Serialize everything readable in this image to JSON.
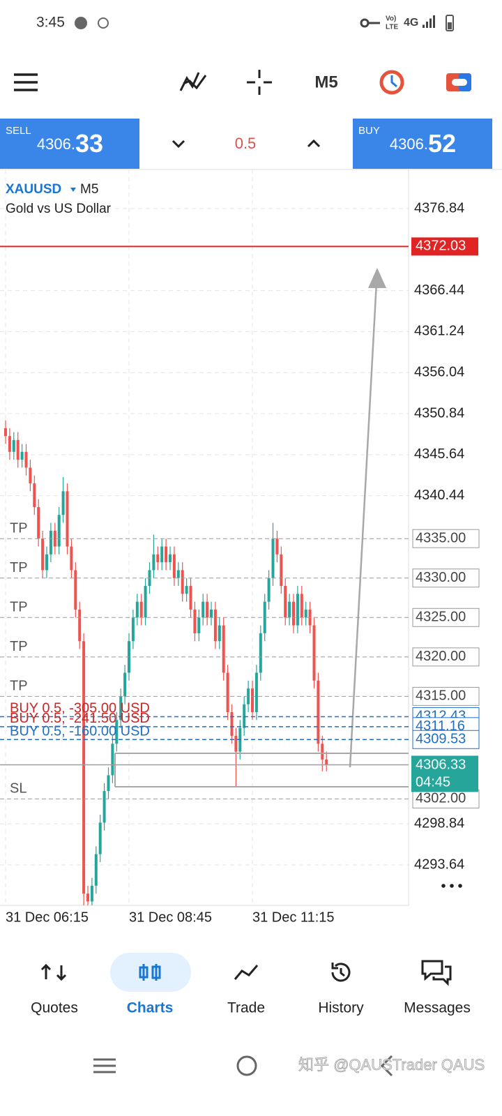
{
  "status_bar": {
    "time": "3:45",
    "volte_top": "Vo)",
    "volte_bottom": "LTE",
    "network": "4G"
  },
  "toolbar": {
    "timeframe": "M5"
  },
  "trade_panel": {
    "sell_label": "SELL",
    "sell_price": {
      "main": "4306.",
      "big": "33"
    },
    "volume": "0.5",
    "buy_label": "BUY",
    "buy_price": {
      "main": "4306.",
      "big": "52"
    }
  },
  "chart_data": {
    "type": "candlestick",
    "symbol": "XAUUSD",
    "timeframe": "M5",
    "title": "Gold vs US Dollar",
    "up_color": "#26a69a",
    "down_color": "#ef5350",
    "grid": true,
    "ylim": [
      4288.51,
      4381.79
    ],
    "yticks": [
      4376.84,
      4366.44,
      4361.24,
      4356.04,
      4350.84,
      4345.64,
      4340.44,
      4298.84,
      4293.64
    ],
    "xticks": [
      {
        "value": 0,
        "label": "31 Dec 06:15"
      },
      {
        "value": 30,
        "label": "31 Dec 08:45"
      },
      {
        "value": 60,
        "label": "31 Dec 11:15"
      }
    ],
    "open": [
      4349,
      4348,
      4346,
      4347.5,
      4345,
      4346,
      4344,
      4342,
      4339,
      4335,
      4331,
      4333,
      4336,
      4334,
      4338,
      4341,
      4334,
      4331,
      4326,
      4322,
      4290,
      4289,
      4291,
      4295,
      4299,
      4303,
      4305,
      4309,
      4312,
      4315,
      4318,
      4322,
      4325,
      4327,
      4325,
      4329,
      4331,
      4333,
      4332,
      4334,
      4332,
      4333,
      4330,
      4331,
      4328,
      4329,
      4326,
      4323,
      4325,
      4327,
      4325,
      4326,
      4322,
      4324,
      4318,
      4313,
      4310,
      4308,
      4311,
      4314,
      4316,
      4313,
      4318,
      4323,
      4327,
      4330,
      4335,
      4333,
      4329,
      4325,
      4327,
      4324,
      4328,
      4325,
      4326,
      4324,
      4317,
      4309,
      4307
    ],
    "high": [
      4350,
      4349,
      4348.5,
      4348.5,
      4347,
      4347,
      4345,
      4343,
      4340,
      4336,
      4334,
      4337,
      4337,
      4339,
      4342.8,
      4342,
      4335,
      4332,
      4327,
      4323,
      4291,
      4292,
      4296,
      4300,
      4304,
      4306,
      4310,
      4313,
      4316,
      4319,
      4323,
      4326,
      4328,
      4328,
      4330,
      4332,
      4335.5,
      4334,
      4335,
      4335,
      4334,
      4334,
      4332,
      4332,
      4330,
      4330,
      4327,
      4326,
      4328,
      4328,
      4327,
      4327,
      4325,
      4325,
      4319,
      4314,
      4311,
      4312,
      4315,
      4317,
      4317,
      4319,
      4324,
      4328,
      4331,
      4337,
      4336,
      4334,
      4330,
      4328,
      4328,
      4329,
      4329,
      4327,
      4327,
      4325,
      4318,
      4310,
      4308
    ],
    "low": [
      4347,
      4345,
      4345,
      4344,
      4344,
      4343,
      4341,
      4338,
      4334,
      4330,
      4330,
      4332,
      4333,
      4333,
      4337,
      4333,
      4330,
      4325,
      4321,
      4286,
      4288,
      4288,
      4290,
      4294,
      4298,
      4302,
      4304,
      4308,
      4311,
      4314,
      4317,
      4321,
      4324,
      4324,
      4324,
      4328,
      4330,
      4331,
      4331,
      4331,
      4331,
      4329,
      4329,
      4327,
      4327,
      4325,
      4322,
      4322,
      4324,
      4324,
      4324,
      4321,
      4321,
      4317,
      4312,
      4309,
      4303.5,
      4307,
      4310,
      4313,
      4312,
      4312,
      4317,
      4322,
      4326,
      4329,
      4332,
      4328,
      4324,
      4324,
      4323,
      4323,
      4324,
      4324,
      4323,
      4316,
      4308,
      4305.5,
      4305.5
    ],
    "close": [
      4348,
      4346,
      4347.5,
      4345,
      4346,
      4344,
      4342,
      4339,
      4335,
      4331,
      4333,
      4336,
      4334,
      4338,
      4341,
      4334,
      4331,
      4326,
      4322,
      4290,
      4289,
      4291,
      4295,
      4299,
      4303,
      4305,
      4309,
      4312,
      4315,
      4318,
      4322,
      4325,
      4327,
      4325,
      4329,
      4331,
      4333,
      4332,
      4334,
      4332,
      4333,
      4330,
      4331,
      4328,
      4329,
      4326,
      4323,
      4325,
      4327,
      4325,
      4326,
      4322,
      4324,
      4318,
      4313,
      4310,
      4308,
      4311,
      4314,
      4316,
      4313,
      4318,
      4323,
      4327,
      4330,
      4335,
      4333,
      4329,
      4325,
      4327,
      4324,
      4328,
      4325,
      4326,
      4324,
      4317,
      4309,
      4307,
      4306.33
    ],
    "alert_level": {
      "value": 4372.03,
      "label": "4372.03",
      "color": "#e02424"
    },
    "take_profits": [
      {
        "value": 4335,
        "label": "4335.00",
        "tag": "TP"
      },
      {
        "value": 4330,
        "label": "4330.00",
        "tag": "TP"
      },
      {
        "value": 4325,
        "label": "4325.00",
        "tag": "TP"
      },
      {
        "value": 4320,
        "label": "4320.00",
        "tag": "TP"
      },
      {
        "value": 4315,
        "label": "4315.00",
        "tag": "TP"
      }
    ],
    "positions": [
      {
        "value": 4312.43,
        "label": "4312.43",
        "text": "BUY 0.5, -305.00 USD",
        "color": "#c62828"
      },
      {
        "value": 4311.16,
        "label": "4311.16",
        "text": "BUY 0.5, -241.50 USD",
        "color": "#c62828"
      },
      {
        "value": 4309.53,
        "label": "4309.53",
        "text": "BUY 0.5, -160.00 USD",
        "color": "#1f6fc5"
      }
    ],
    "stop_loss": {
      "value": 4302,
      "label": "4302.00",
      "tag": "SL"
    },
    "current_price": {
      "value": 4306.33,
      "label": "4306.33",
      "countdown": "04:45",
      "color": "#26a69a"
    }
  },
  "bottom_nav": {
    "items": [
      "Quotes",
      "Charts",
      "Trade",
      "History",
      "Messages"
    ],
    "active": 1
  },
  "watermark": "知乎 @QAUSTrader QAUS"
}
